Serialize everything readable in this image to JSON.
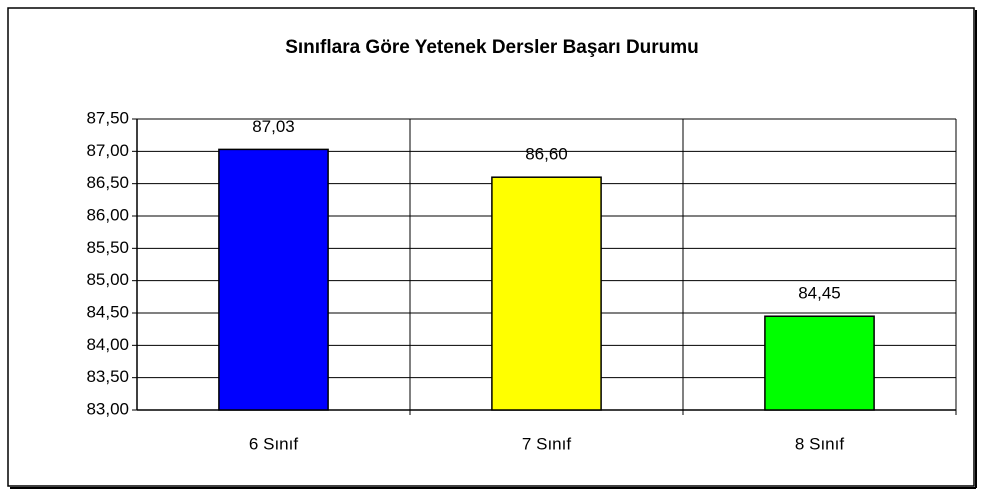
{
  "chart_data": {
    "type": "bar",
    "title": "Sınıflara Göre Yetenek Dersler Başarı Durumu",
    "categories": [
      "6 Sınıf",
      "7 Sınıf",
      "8 Sınıf"
    ],
    "values": [
      87.03,
      86.6,
      84.45
    ],
    "value_labels": [
      "87,03",
      "86,60",
      "84,45"
    ],
    "colors": [
      "#0000ff",
      "#ffff00",
      "#00ff00"
    ],
    "ylim": [
      83,
      87.5
    ],
    "yticks": [
      {
        "value": 83,
        "label": "83,00"
      },
      {
        "value": 83.5,
        "label": "83,50"
      },
      {
        "value": 84,
        "label": "84,00"
      },
      {
        "value": 84.5,
        "label": "84,50"
      },
      {
        "value": 85,
        "label": "85,00"
      },
      {
        "value": 85.5,
        "label": "85,50"
      },
      {
        "value": 86,
        "label": "86,00"
      },
      {
        "value": 86.5,
        "label": "86,50"
      },
      {
        "value": 87,
        "label": "87,00"
      },
      {
        "value": 87.5,
        "label": "87,50"
      }
    ],
    "grid": true
  }
}
